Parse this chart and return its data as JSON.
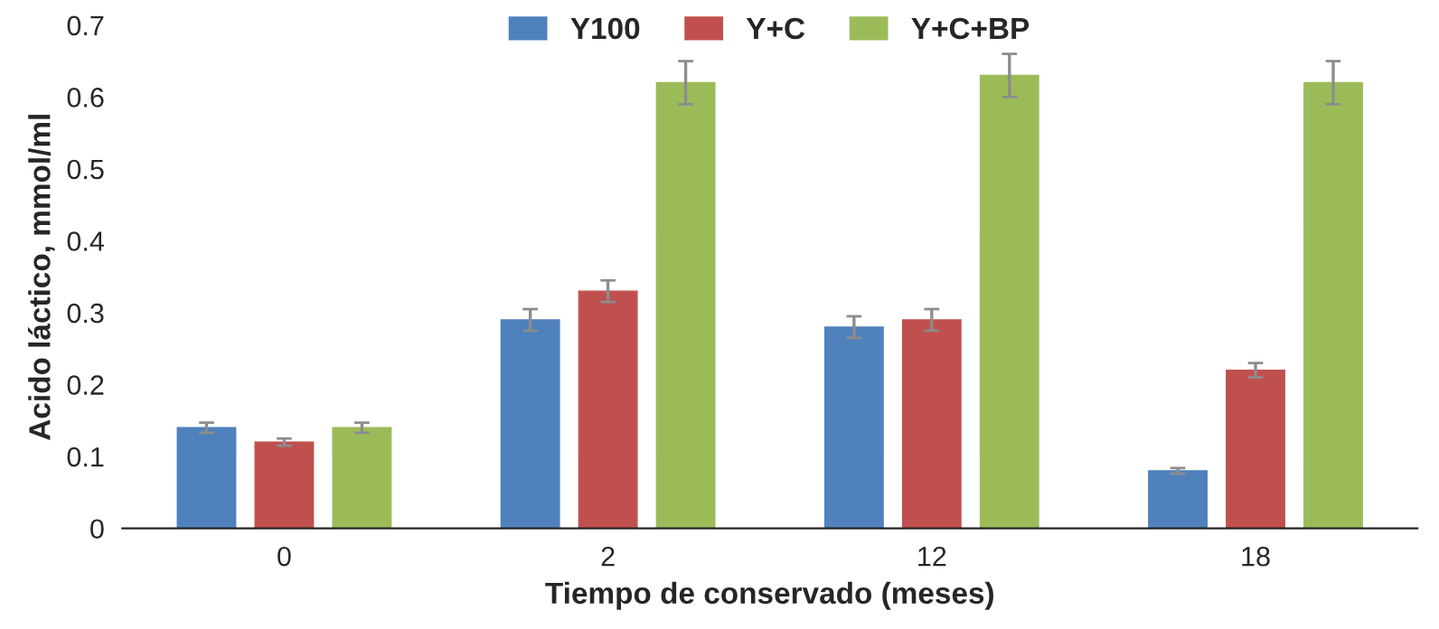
{
  "chart_data": {
    "type": "bar",
    "xlabel": "Tiempo de conservado (meses)",
    "ylabel": "Acido láctico, mmol/ml",
    "categories": [
      "0",
      "2",
      "12",
      "18"
    ],
    "series": [
      {
        "name": "Y100",
        "color": "#4f81bd",
        "values": [
          0.14,
          0.29,
          0.28,
          0.08
        ],
        "errors": [
          0.007,
          0.015,
          0.015,
          0.004
        ]
      },
      {
        "name": "Y+C",
        "color": "#c0504d",
        "values": [
          0.12,
          0.33,
          0.29,
          0.22
        ],
        "errors": [
          0.005,
          0.015,
          0.015,
          0.01
        ]
      },
      {
        "name": "Y+C+BP",
        "color": "#9bbb59",
        "values": [
          0.14,
          0.62,
          0.63,
          0.62
        ],
        "errors": [
          0.007,
          0.03,
          0.03,
          0.03
        ]
      }
    ],
    "ylim": [
      0,
      0.7
    ],
    "yticks": [
      0,
      0.1,
      0.2,
      0.3,
      0.4,
      0.5,
      0.6,
      0.7
    ],
    "grid": false,
    "legend": "top"
  }
}
